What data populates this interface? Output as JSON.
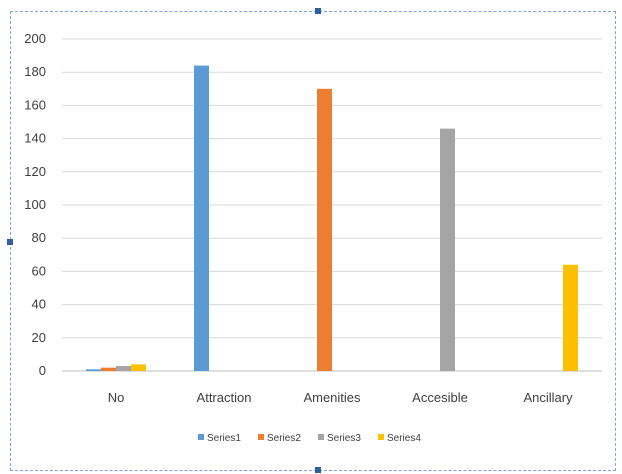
{
  "chart_data": {
    "type": "bar",
    "categories": [
      "No",
      "Attraction",
      "Amenities",
      "Accesible",
      "Ancillary"
    ],
    "series": [
      {
        "name": "Series1",
        "color": "#5b9bd5",
        "values": [
          1,
          184,
          0,
          0,
          0
        ]
      },
      {
        "name": "Series2",
        "color": "#ed7d31",
        "values": [
          2,
          0,
          170,
          0,
          0
        ]
      },
      {
        "name": "Series3",
        "color": "#a5a5a5",
        "values": [
          3,
          0,
          0,
          146,
          0
        ]
      },
      {
        "name": "Series4",
        "color": "#ffc000",
        "values": [
          4,
          0,
          0,
          0,
          64
        ]
      }
    ],
    "ylim": [
      0,
      200
    ],
    "yticks": [
      0,
      20,
      40,
      60,
      80,
      100,
      120,
      140,
      160,
      180,
      200
    ],
    "grid": true,
    "legend": "bottom"
  }
}
